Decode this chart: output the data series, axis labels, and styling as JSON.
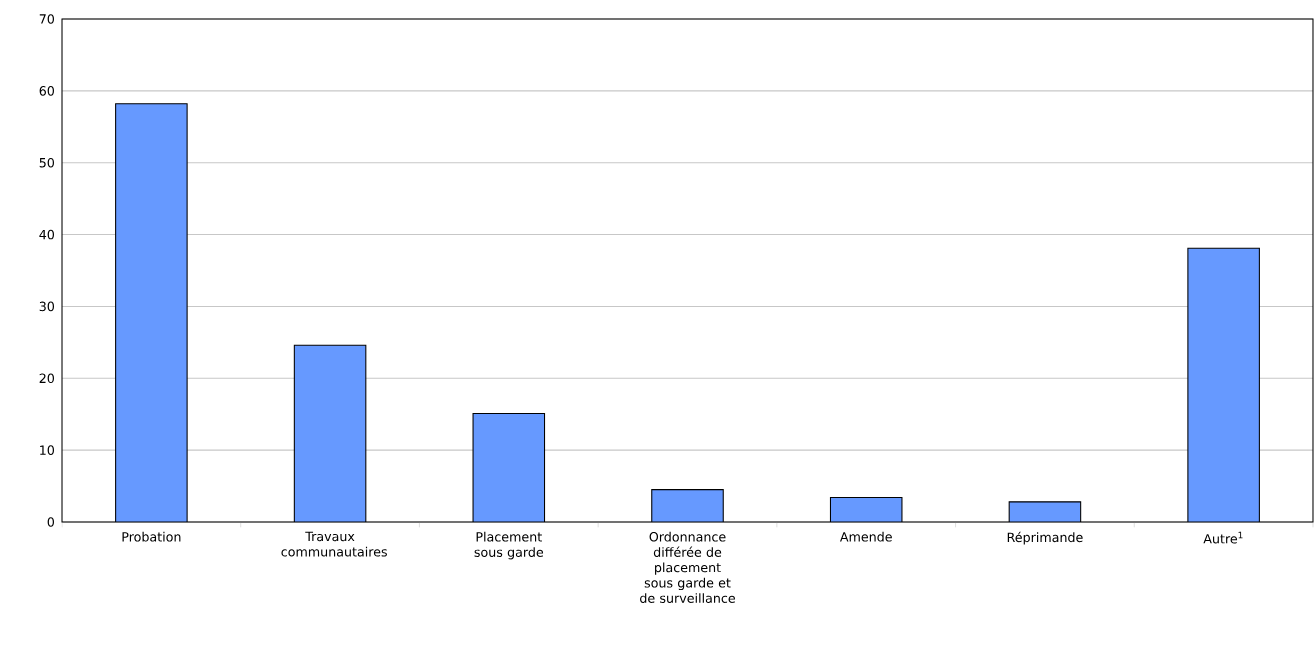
{
  "chart_data": {
    "type": "bar",
    "categories": [
      "Probation",
      "Travaux communautaires",
      "Placement sous garde",
      "Ordonnance différée de placement sous garde et de surveillance",
      "Amende",
      "Réprimande",
      "Autre$^{1}$"
    ],
    "values": [
      58.2,
      24.6,
      15.1,
      4.5,
      3.4,
      2.8,
      38.1
    ],
    "color": "#6699ff",
    "ylim": [
      0,
      70
    ],
    "yticks": [
      0,
      10,
      20,
      30,
      40,
      50,
      60,
      70
    ],
    "grid": "y"
  }
}
